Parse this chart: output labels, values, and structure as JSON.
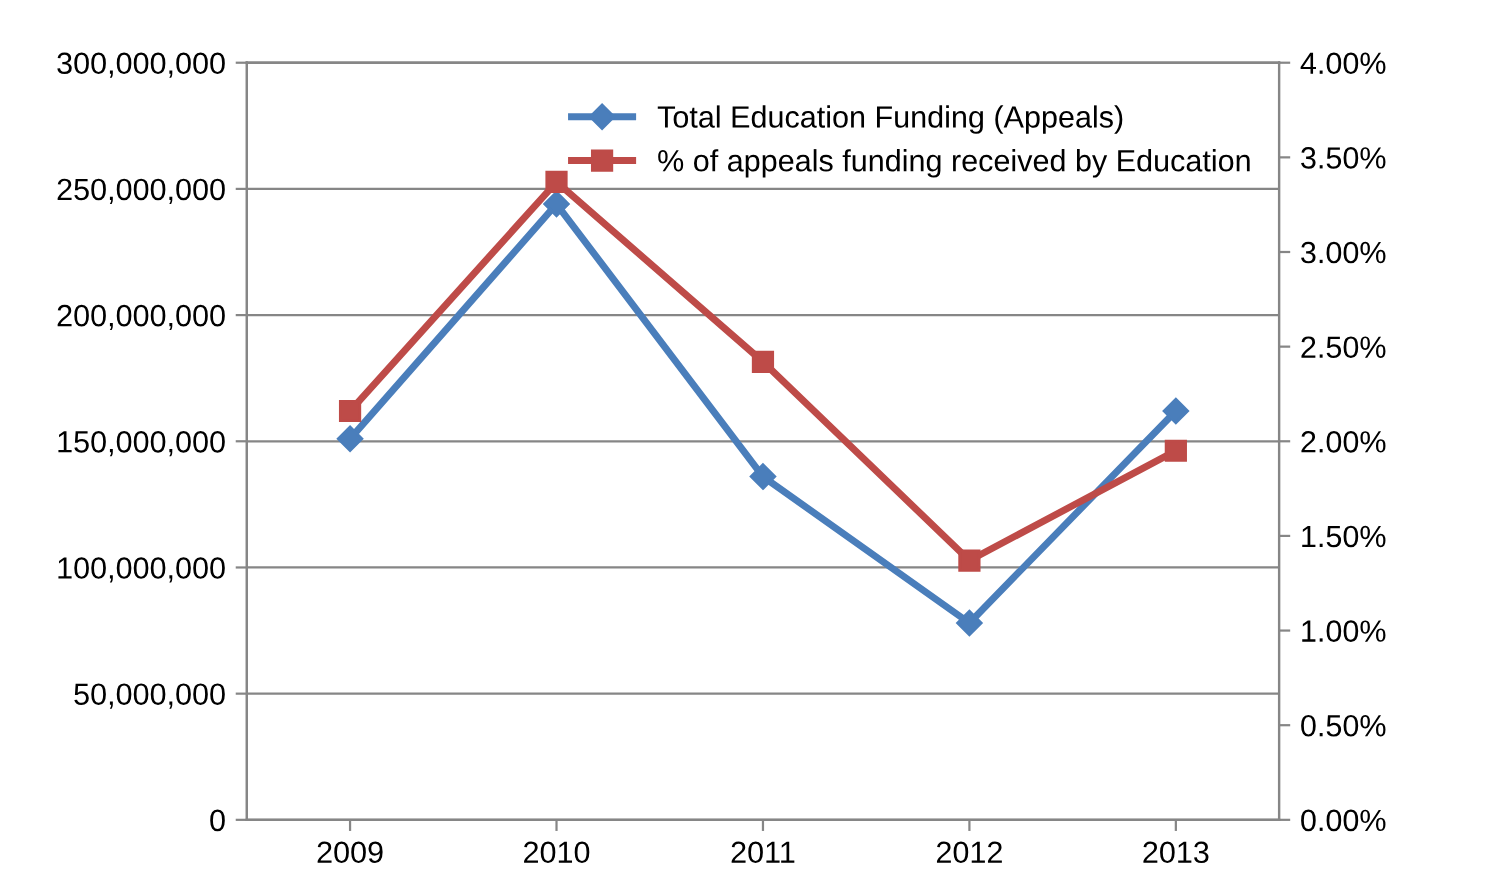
{
  "chart_data": {
    "type": "line",
    "categories": [
      "2009",
      "2010",
      "2011",
      "2012",
      "2013"
    ],
    "series": [
      {
        "name": "Total Education Funding (Appeals)",
        "color": "#4a7ebb",
        "values": [
          151000000,
          244000000,
          136000000,
          78000000,
          162000000
        ],
        "marker": "diamond"
      },
      {
        "name": "% of appeals funding received by Education",
        "color": "#be4b48",
        "values": [
          2.16,
          3.37,
          2.42,
          1.37,
          1.95
        ],
        "axis": "y2",
        "marker": "square"
      }
    ],
    "ylim": [
      0,
      300000000
    ],
    "yticks": [
      {
        "value": 0,
        "label": "0"
      },
      {
        "value": 50000000,
        "label": "50,000,000"
      },
      {
        "value": 100000000,
        "label": "100,000,000"
      },
      {
        "value": 150000000,
        "label": "150,000,000"
      },
      {
        "value": 200000000,
        "label": "200,000,000"
      },
      {
        "value": 250000000,
        "label": "250,000,000"
      },
      {
        "value": 300000000,
        "label": "300,000,000"
      }
    ],
    "y2lim": [
      0,
      4
    ],
    "y2ticks": [
      {
        "value": 0,
        "label": "0.00%"
      },
      {
        "value": 0.5,
        "label": "0.50%"
      },
      {
        "value": 1,
        "label": "1.00%"
      },
      {
        "value": 1.5,
        "label": "1.50%"
      },
      {
        "value": 2,
        "label": "2.00%"
      },
      {
        "value": 2.5,
        "label": "2.50%"
      },
      {
        "value": 3,
        "label": "3.00%"
      },
      {
        "value": 3.5,
        "label": "3.50%"
      },
      {
        "value": 4,
        "label": "4.00%"
      }
    ],
    "grid": "y",
    "legend": "top right",
    "line_style": "solid"
  }
}
